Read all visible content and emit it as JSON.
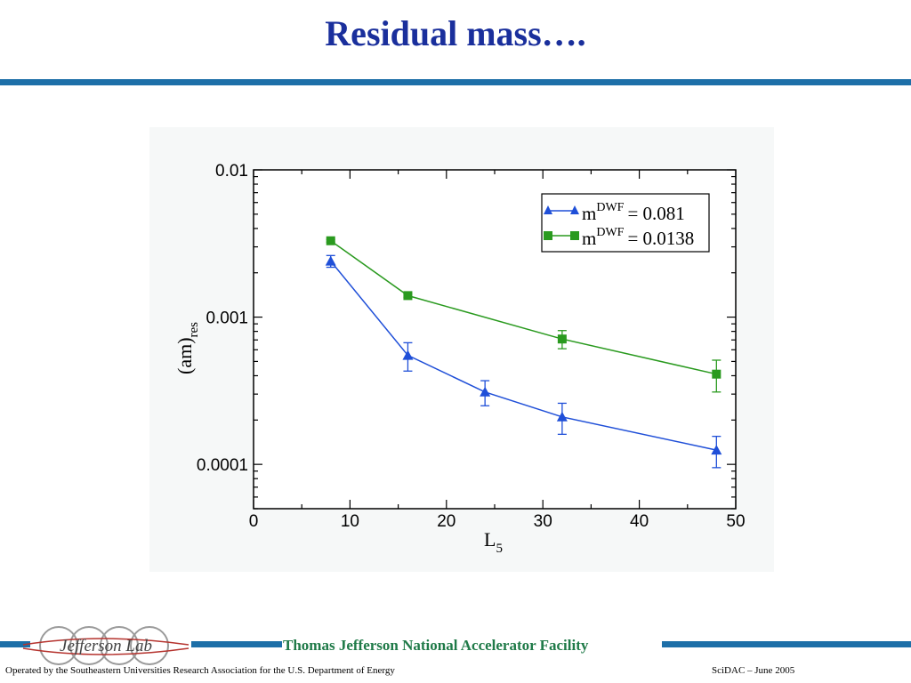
{
  "slide": {
    "title": "Residual mass….",
    "footer_org": "Thomas Jefferson National Accelerator Facility",
    "footer_operated": "Operated by the Southeastern Universities Research Association for the U.S. Department of  Energy",
    "footer_event": "SciDAC – June  2005",
    "logo_text": "Jefferson Lab"
  },
  "colors": {
    "title": "#1a2f9c",
    "rule": "#1d6fa8",
    "footer_org": "#1f7a48",
    "series_blue": "#1f4fd8",
    "series_green": "#2a9a1f"
  },
  "chart_data": {
    "type": "line",
    "xlabel_main": "L",
    "xlabel_sub": "5",
    "ylabel_main": "(am)",
    "ylabel_sub": "res",
    "xlim": [
      0,
      50
    ],
    "ylim": [
      5e-05,
      0.01
    ],
    "yscale": "log",
    "x_ticks": [
      "0",
      "10",
      "20",
      "30",
      "40",
      "50"
    ],
    "y_ticks": [
      "0.01",
      "0.001",
      "0.0001"
    ],
    "legend_position": "top-right",
    "series": [
      {
        "legend_prefix": "m",
        "legend_sup": "DWF",
        "legend_value": "= 0.081",
        "marker": "triangle",
        "color": "#1f4fd8",
        "x": [
          8,
          16,
          24,
          32,
          48
        ],
        "y": [
          0.0024,
          0.00055,
          0.00031,
          0.00021,
          0.000125
        ],
        "y_err_low": [
          0.00022,
          0.00012,
          6e-05,
          5e-05,
          3e-05
        ],
        "y_err_high": [
          0.00022,
          0.00012,
          6e-05,
          5e-05,
          3e-05
        ]
      },
      {
        "legend_prefix": "m",
        "legend_sup": "DWF",
        "legend_value": "= 0.0138",
        "marker": "square",
        "color": "#2a9a1f",
        "x": [
          8,
          16,
          32,
          48
        ],
        "y": [
          0.0033,
          0.0014,
          0.00071,
          0.00041
        ],
        "y_err_low": [
          7e-05,
          4e-05,
          0.0001,
          0.0001
        ],
        "y_err_high": [
          7e-05,
          4e-05,
          0.0001,
          0.0001
        ]
      }
    ]
  }
}
